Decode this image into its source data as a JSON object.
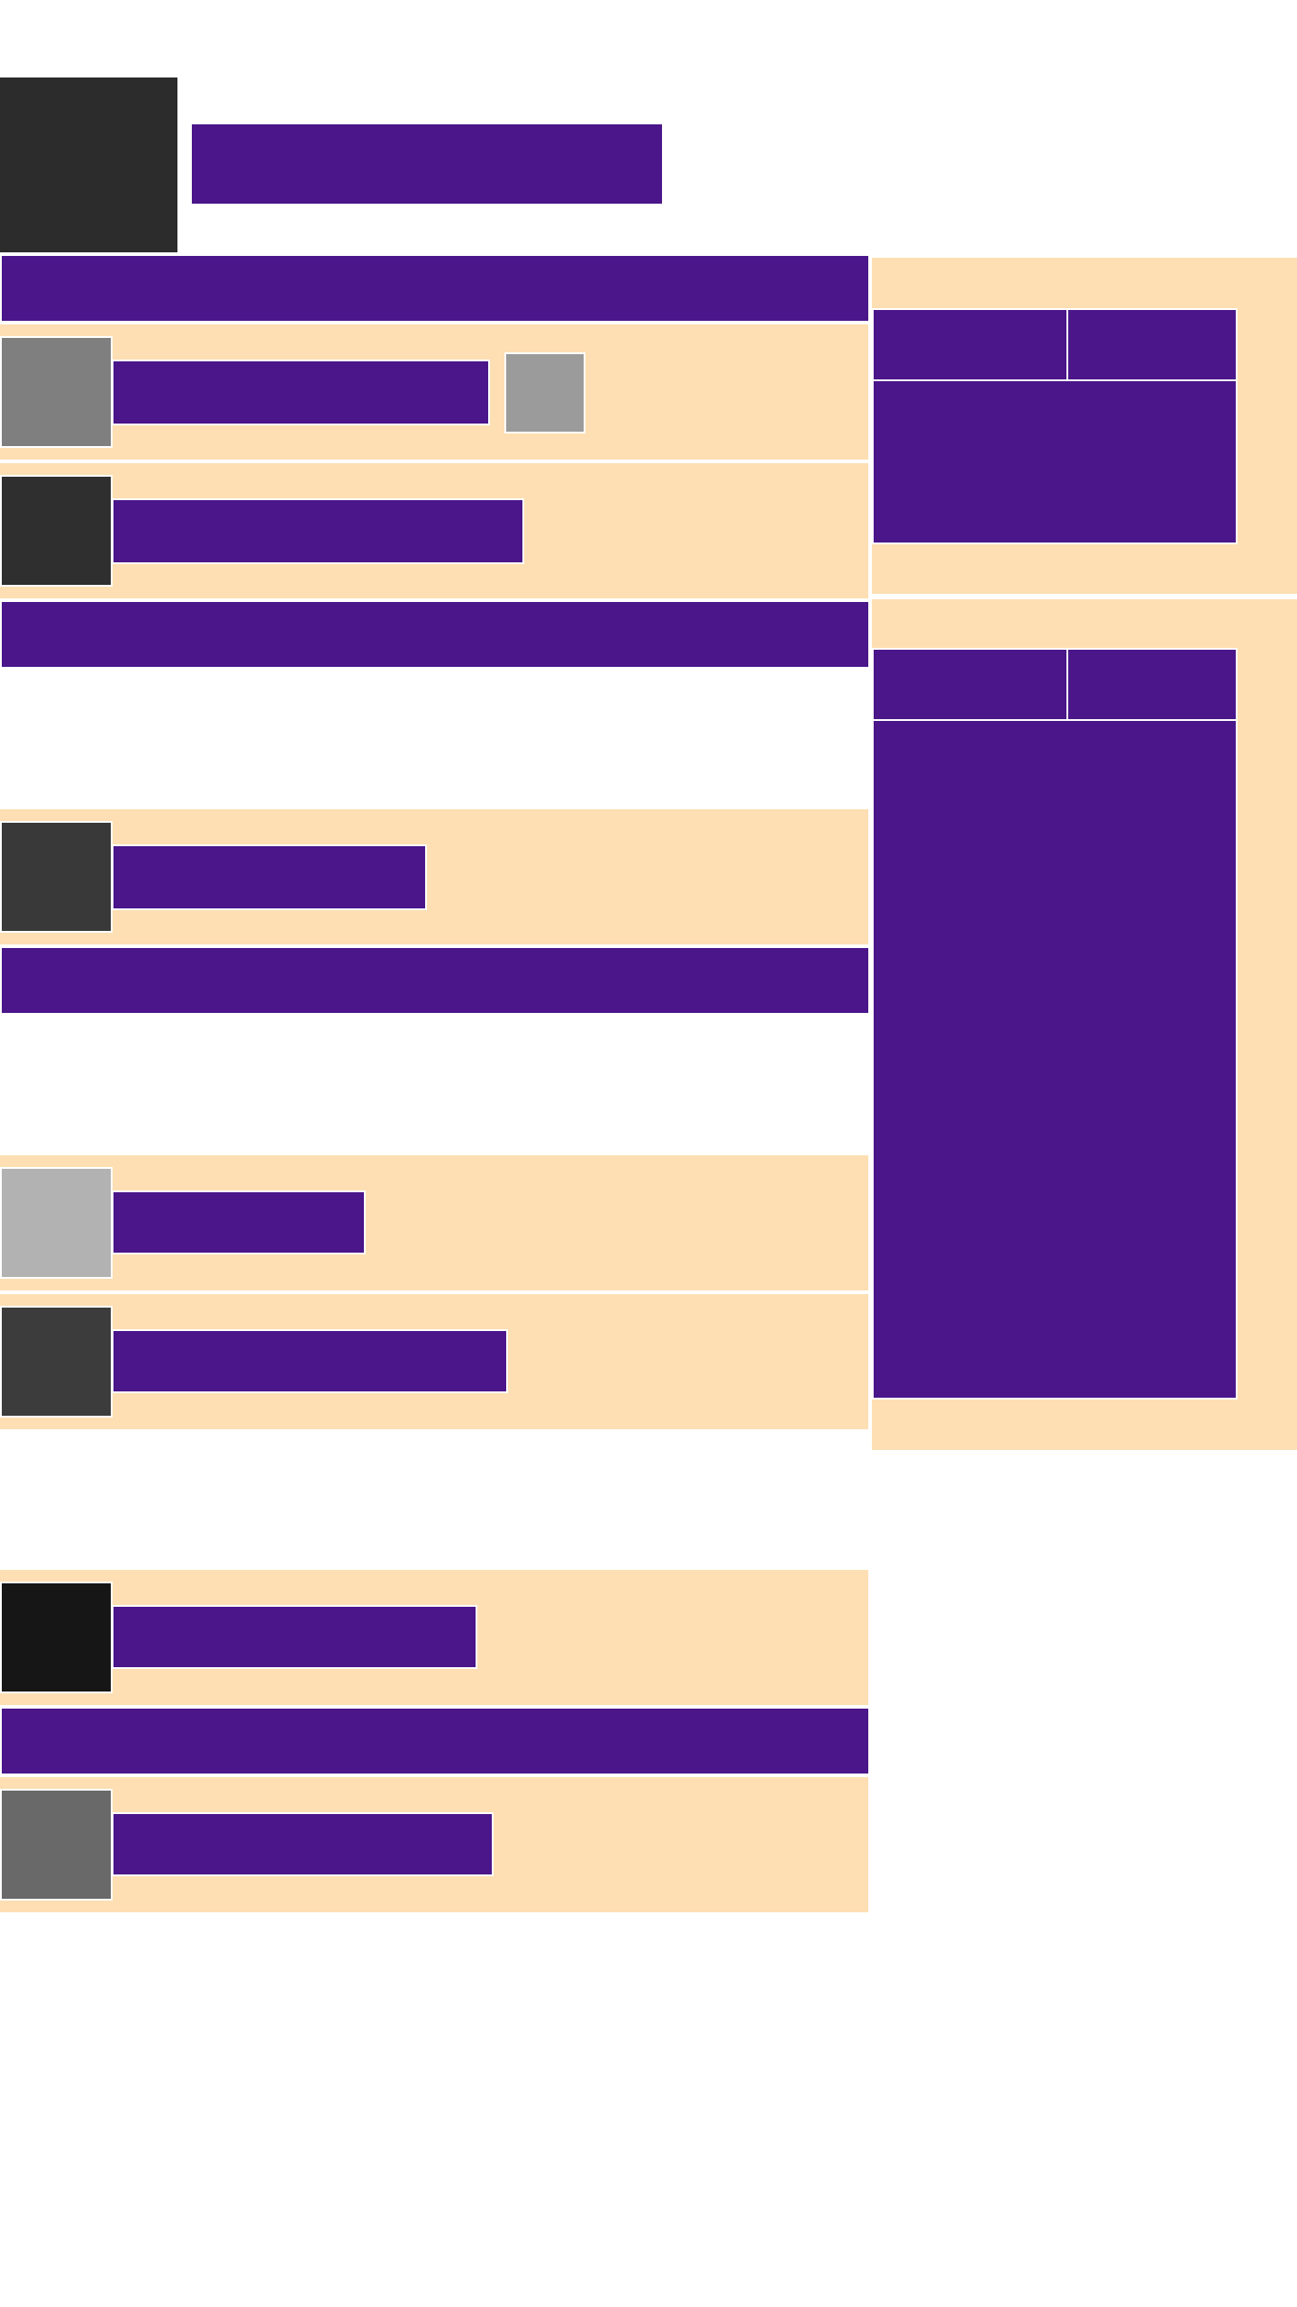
{
  "colors": {
    "accent": "#4a168a",
    "panel": "#fddfb3",
    "background": "#ffffff"
  },
  "header": {
    "logo_icon": "logo-icon",
    "title": ""
  },
  "feed": {
    "sections": [
      {
        "heading": "",
        "items": [
          {
            "thumb_color": "#7f7f7f",
            "title": "",
            "badge_color": "#9b9b9b"
          },
          {
            "thumb_color": "#2f2f2f",
            "title": ""
          }
        ]
      },
      {
        "heading": "",
        "items": [
          {
            "thumb_color": "#393939",
            "title": ""
          }
        ]
      },
      {
        "heading": "",
        "items": [
          {
            "thumb_color": "#b2b2b2",
            "title": ""
          },
          {
            "thumb_color": "#3c3c3c",
            "title": ""
          }
        ]
      },
      {
        "heading": "",
        "items": [
          {
            "thumb_color": "#161616",
            "title": ""
          }
        ]
      },
      {
        "heading": "",
        "items": [
          {
            "thumb_color": "#696969",
            "title": ""
          }
        ]
      }
    ]
  },
  "sidebar": {
    "widgets": [
      {
        "tab_left": "",
        "tab_right": "",
        "content": ""
      },
      {
        "tab_left": "",
        "tab_right": "",
        "content": ""
      }
    ]
  }
}
